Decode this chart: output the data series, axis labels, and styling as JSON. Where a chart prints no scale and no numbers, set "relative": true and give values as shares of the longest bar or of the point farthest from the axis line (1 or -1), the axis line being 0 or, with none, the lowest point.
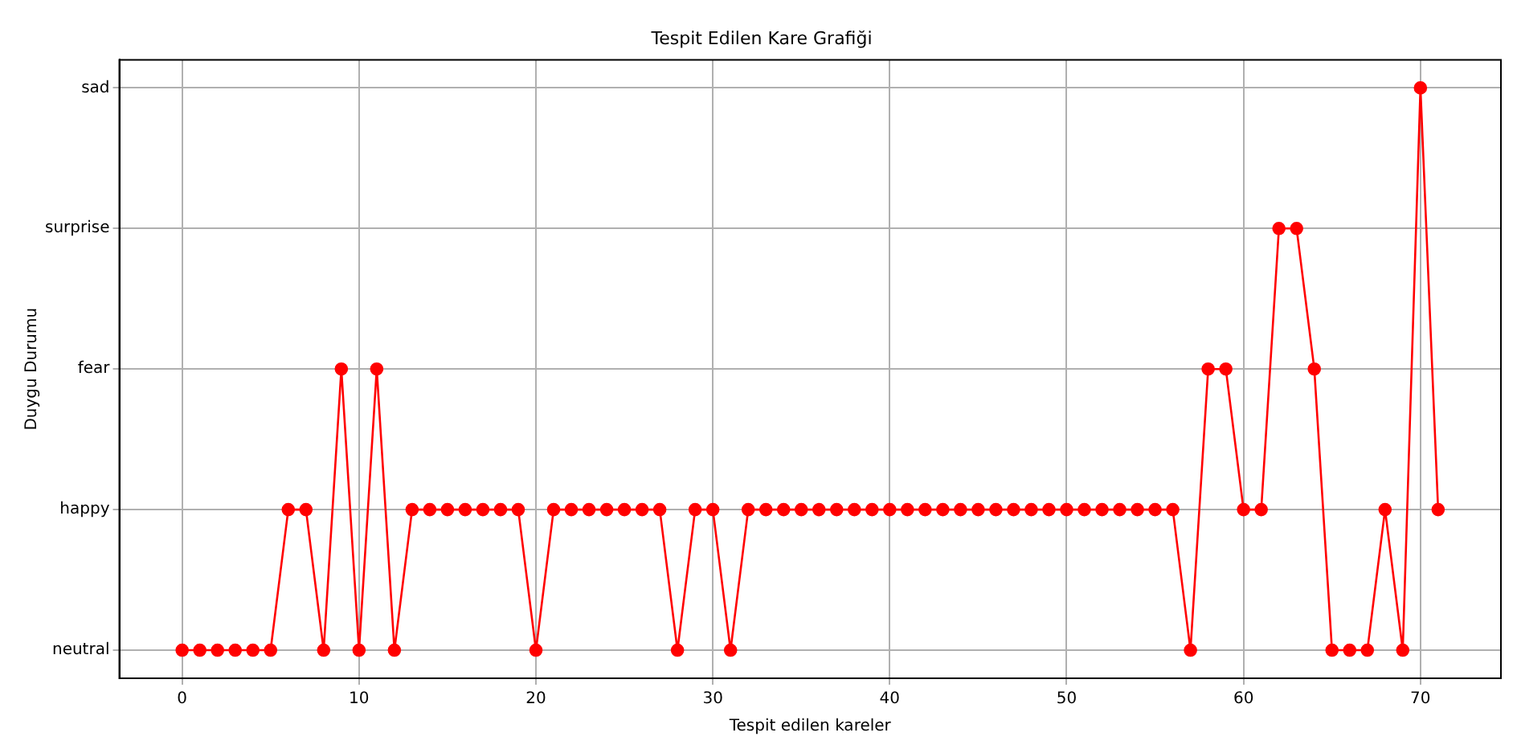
{
  "chart_data": {
    "type": "line",
    "title": "Tespit Edilen Kare Grafiği",
    "xlabel": "Tespit edilen kareler",
    "ylabel": "Duygu Durumu",
    "relative": true,
    "x": [
      0,
      1,
      2,
      3,
      4,
      5,
      6,
      7,
      8,
      9,
      10,
      11,
      12,
      13,
      14,
      15,
      16,
      17,
      18,
      19,
      20,
      21,
      22,
      23,
      24,
      25,
      26,
      27,
      28,
      29,
      30,
      31,
      32,
      33,
      34,
      35,
      36,
      37,
      38,
      39,
      40,
      41,
      42,
      43,
      44,
      45,
      46,
      47,
      48,
      49,
      50,
      51,
      52,
      53,
      54,
      55,
      56,
      57,
      58,
      59,
      60,
      61,
      62,
      63,
      64,
      65,
      66,
      67,
      68,
      69,
      70,
      71
    ],
    "y_categories": [
      "sad",
      "surprise",
      "fear",
      "happy",
      "neutral"
    ],
    "series": [
      {
        "color": "#ff0000",
        "values": [
          0,
          0,
          0,
          0,
          0,
          0,
          0.25,
          0.25,
          0,
          0.5,
          0,
          0.5,
          0,
          0.25,
          0.25,
          0.25,
          0.25,
          0.25,
          0.25,
          0.25,
          0,
          0.25,
          0.25,
          0.25,
          0.25,
          0.25,
          0.25,
          0.25,
          0,
          0.25,
          0.25,
          0,
          0.25,
          0.25,
          0.25,
          0.25,
          0.25,
          0.25,
          0.25,
          0.25,
          0.25,
          0.25,
          0.25,
          0.25,
          0.25,
          0.25,
          0.25,
          0.25,
          0.25,
          0.25,
          0.25,
          0.25,
          0.25,
          0.25,
          0.25,
          0.25,
          0.25,
          0,
          0.5,
          0.5,
          0.25,
          0.25,
          0.75,
          0.75,
          0.5,
          0,
          0,
          0,
          0.25,
          0,
          1,
          0.25
        ]
      }
    ],
    "xlim": [
      -3.55,
      74.55
    ],
    "xticks": [
      0,
      10,
      20,
      30,
      40,
      50,
      60,
      70
    ],
    "grid": true,
    "legend": false,
    "marker": "circle",
    "line_style": "solid"
  }
}
